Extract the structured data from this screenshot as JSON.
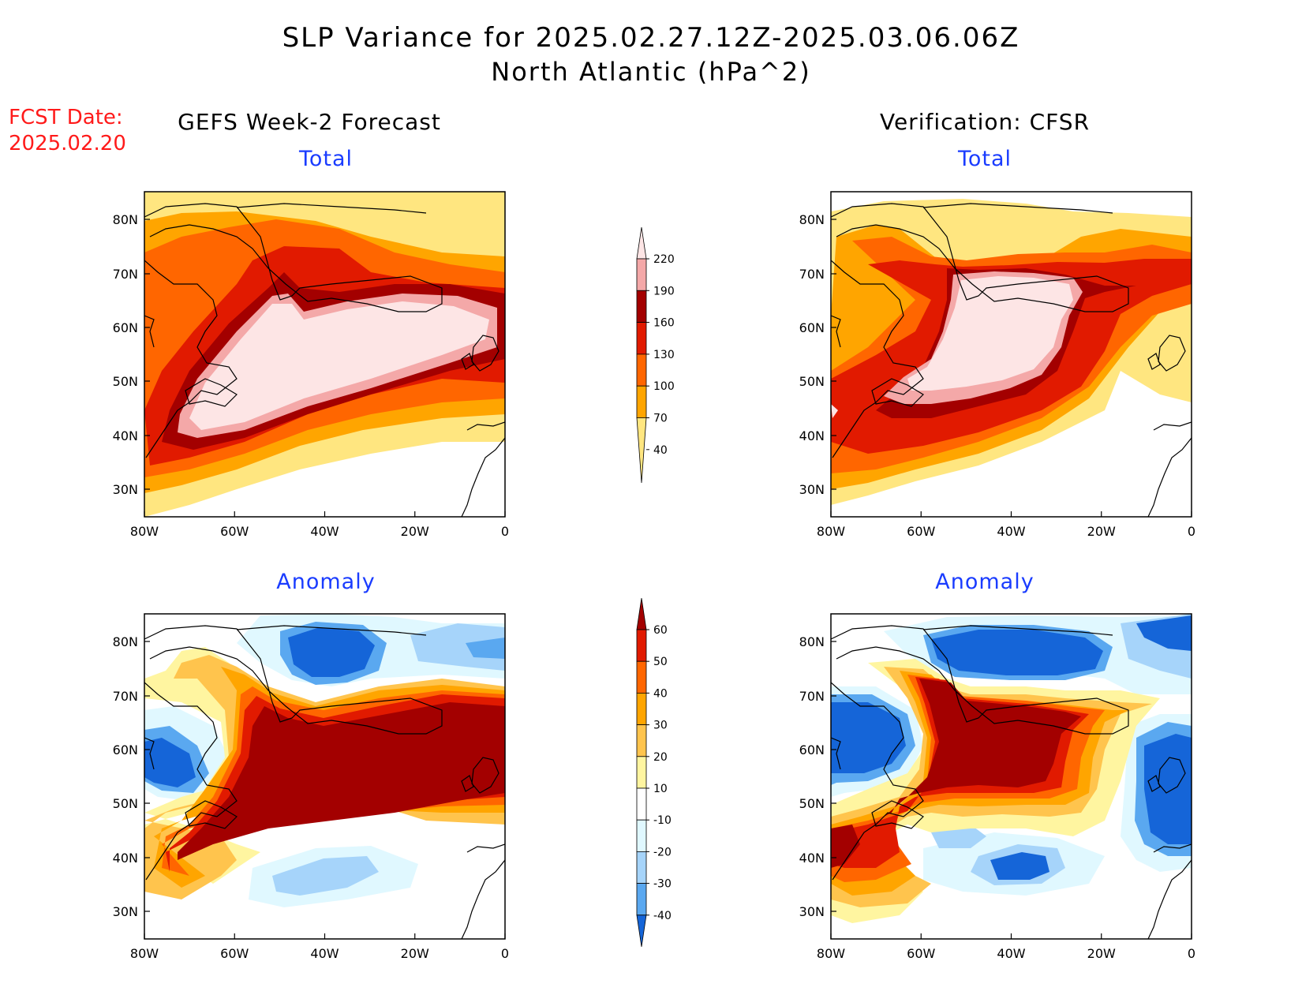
{
  "title": {
    "line1": "SLP Variance for 2025.02.27.12Z-2025.03.06.06Z",
    "line2": "North Atlantic (hPa^2)"
  },
  "fcst": {
    "line1": "FCST Date:",
    "line2": "2025.02.20"
  },
  "columns": {
    "left": "GEFS Week-2 Forecast",
    "right": "Verification: CFSR"
  },
  "panels": [
    {
      "id": "fcst-total",
      "title": "Total"
    },
    {
      "id": "cfsr-total",
      "title": "Total"
    },
    {
      "id": "fcst-anomaly",
      "title": "Anomaly"
    },
    {
      "id": "cfsr-anomaly",
      "title": "Anomaly"
    }
  ],
  "axes": {
    "lat_labels": [
      "80N",
      "70N",
      "60N",
      "50N",
      "40N",
      "30N"
    ],
    "lon_labels": [
      "80W",
      "60W",
      "40W",
      "20W",
      "0"
    ]
  },
  "colorbars": {
    "total": {
      "labels": [
        "220",
        "190",
        "160",
        "130",
        "100",
        "70",
        "40"
      ],
      "colors": [
        "#fde5e5",
        "#f4a8a8",
        "#a30000",
        "#e11a00",
        "#ff6600",
        "#ffa500",
        "#ffe680"
      ]
    },
    "anomaly": {
      "labels": [
        "60",
        "50",
        "40",
        "30",
        "20",
        "10",
        "-10",
        "-20",
        "-30",
        "-40"
      ],
      "colors": [
        "#a30000",
        "#e11a00",
        "#ff6600",
        "#ffa500",
        "#ffc44d",
        "#fff5a0",
        "#ffffff",
        "#e0f8ff",
        "#a6d4fa",
        "#5aa8f0",
        "#1565d8"
      ]
    }
  }
}
